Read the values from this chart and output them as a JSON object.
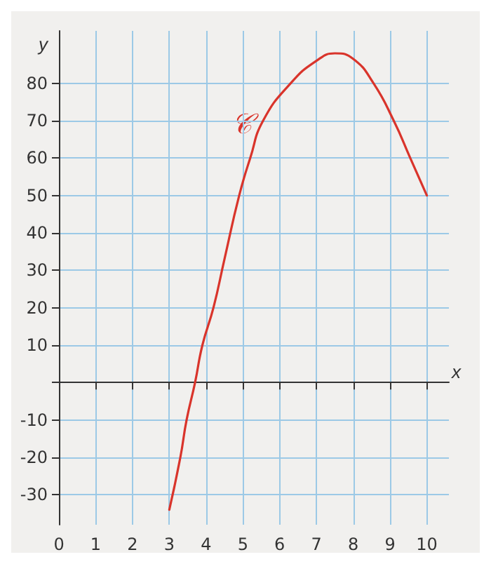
{
  "chart_data": {
    "type": "line",
    "xlabel": "x",
    "ylabel": "y",
    "annotations": [
      "𝒞"
    ],
    "x": [
      3,
      3.3,
      3.47,
      3.7,
      3.9,
      4.2,
      4.5,
      4.9,
      5.2,
      5.55,
      6.3,
      7,
      7.5,
      8,
      8.55,
      9.1,
      9.55,
      10
    ],
    "series": [
      {
        "color": "#d9342b",
        "values": [
          -34,
          -20,
          -10,
          0,
          10,
          20,
          33,
          50,
          60,
          70,
          80,
          86,
          88,
          86.5,
          80,
          70,
          60,
          50
        ]
      }
    ],
    "xlim": [
      0,
      10.6
    ],
    "xticks": [
      0,
      1,
      2,
      3,
      4,
      5,
      6,
      7,
      8,
      9,
      10
    ],
    "ylim": [
      -38,
      94
    ],
    "yticks": [
      -30,
      -20,
      -10,
      {
        "value": 0,
        "label": null
      },
      10,
      20,
      30,
      40,
      50,
      60,
      70,
      80
    ],
    "grid": true,
    "marker": "none",
    "line_style": "solid"
  }
}
